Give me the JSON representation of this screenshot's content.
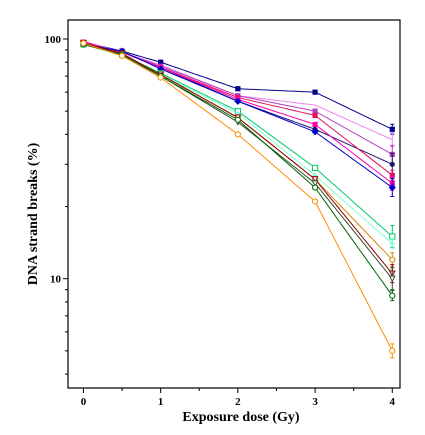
{
  "chart_data": {
    "type": "line",
    "title": "",
    "xlabel": "Exposure dose (Gy)",
    "ylabel": "DNA strand breaks (%)",
    "yscale": "log",
    "xlim": [
      -0.2,
      4.1
    ],
    "ylim": [
      3.5,
      120
    ],
    "x_ticks": [
      "0",
      "1",
      "2",
      "3",
      "4"
    ],
    "x_tick_values": [
      0,
      1,
      2,
      3,
      4
    ],
    "y_ticks": [
      "10",
      "100"
    ],
    "y_tick_values": [
      10,
      100
    ],
    "x": [
      0,
      0.5,
      1,
      2,
      3,
      4
    ],
    "series": [
      {
        "color": "#00008b",
        "marker": "square-filled",
        "values": [
          97,
          89,
          80,
          62,
          60,
          42
        ]
      },
      {
        "color": "#ee82ee",
        "marker": "none",
        "values": [
          98,
          88,
          78,
          58,
          53,
          38
        ]
      },
      {
        "color": "#b040c0",
        "marker": "square-filled",
        "values": [
          96,
          88,
          77,
          58,
          50,
          33
        ]
      },
      {
        "color": "#191970",
        "marker": "circle-filled",
        "values": [
          96,
          88,
          76,
          55,
          42,
          30
        ]
      },
      {
        "color": "#e0115f",
        "marker": "square-filled",
        "values": [
          97,
          88,
          76,
          57,
          48,
          27
        ]
      },
      {
        "color": "#ff00aa",
        "marker": "square-filled",
        "values": [
          96,
          88,
          76,
          56,
          44,
          25
        ]
      },
      {
        "color": "#0000cd",
        "marker": "diamond-filled",
        "values": [
          95,
          89,
          75,
          55,
          41,
          24
        ]
      },
      {
        "color": "#00cc66",
        "marker": "square-open",
        "values": [
          95,
          86,
          72,
          50,
          29,
          15
        ]
      },
      {
        "color": "#7fffd4",
        "marker": "cross",
        "values": [
          95,
          85,
          71,
          49,
          27,
          14
        ]
      },
      {
        "color": "#d4880f",
        "marker": "circle-open",
        "values": [
          95,
          86,
          71,
          47,
          26,
          12
        ]
      },
      {
        "color": "#8b0000",
        "marker": "triangle-open",
        "values": [
          96,
          87,
          71,
          47,
          26,
          10.5
        ]
      },
      {
        "color": "#2f4f2f",
        "marker": "triangle-open",
        "values": [
          95,
          86,
          70,
          45,
          25,
          10
        ]
      },
      {
        "color": "#006400",
        "marker": "circle-open",
        "values": [
          95,
          86,
          70,
          46,
          24,
          8.5
        ]
      },
      {
        "color": "#ff8c00",
        "marker": "circle-open",
        "values": [
          96,
          85,
          69,
          40,
          21,
          5
        ]
      }
    ]
  }
}
